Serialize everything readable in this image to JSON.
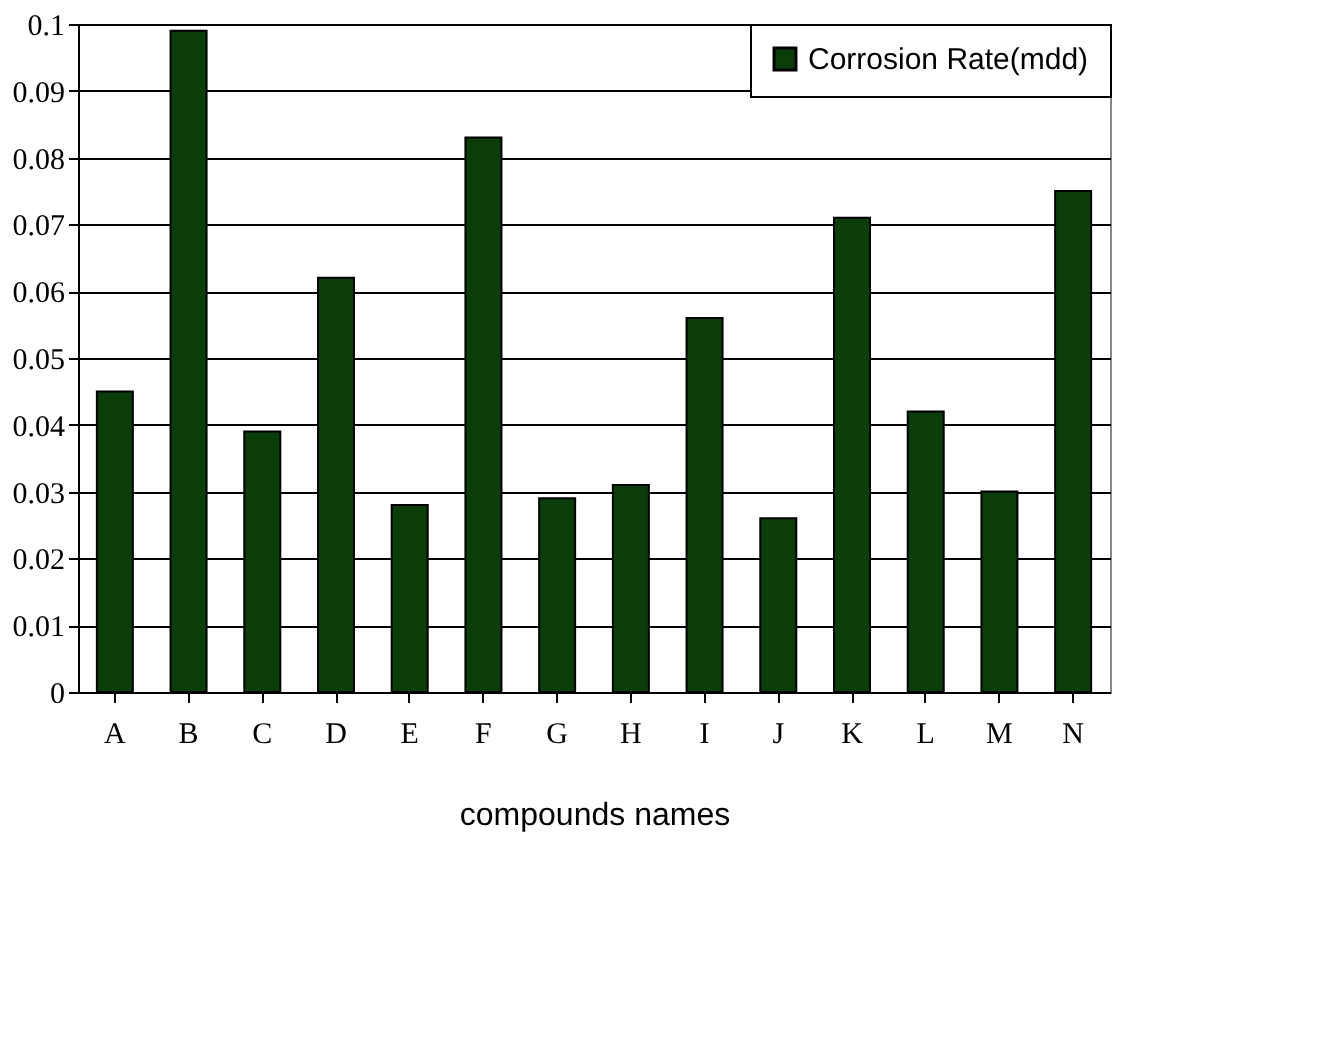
{
  "chart_data": {
    "type": "bar",
    "xlabel": "compounds names",
    "categories": [
      "A",
      "B",
      "C",
      "D",
      "E",
      "F",
      "G",
      "H",
      "I",
      "J",
      "K",
      "L",
      "M",
      "N"
    ],
    "series": [
      {
        "name": "Corrosion Rate(mdd)",
        "color": "#0b3d0b",
        "values": [
          0.045,
          0.099,
          0.039,
          0.062,
          0.028,
          0.083,
          0.029,
          0.031,
          0.056,
          0.026,
          0.071,
          0.042,
          0.03,
          0.075
        ]
      }
    ],
    "ylim": [
      0,
      0.1
    ],
    "yticks": [
      0,
      0.01,
      0.02,
      0.03,
      0.04,
      0.05,
      0.06,
      0.07,
      0.08,
      0.09,
      0.1
    ],
    "grid": "y",
    "legend": "top right"
  }
}
